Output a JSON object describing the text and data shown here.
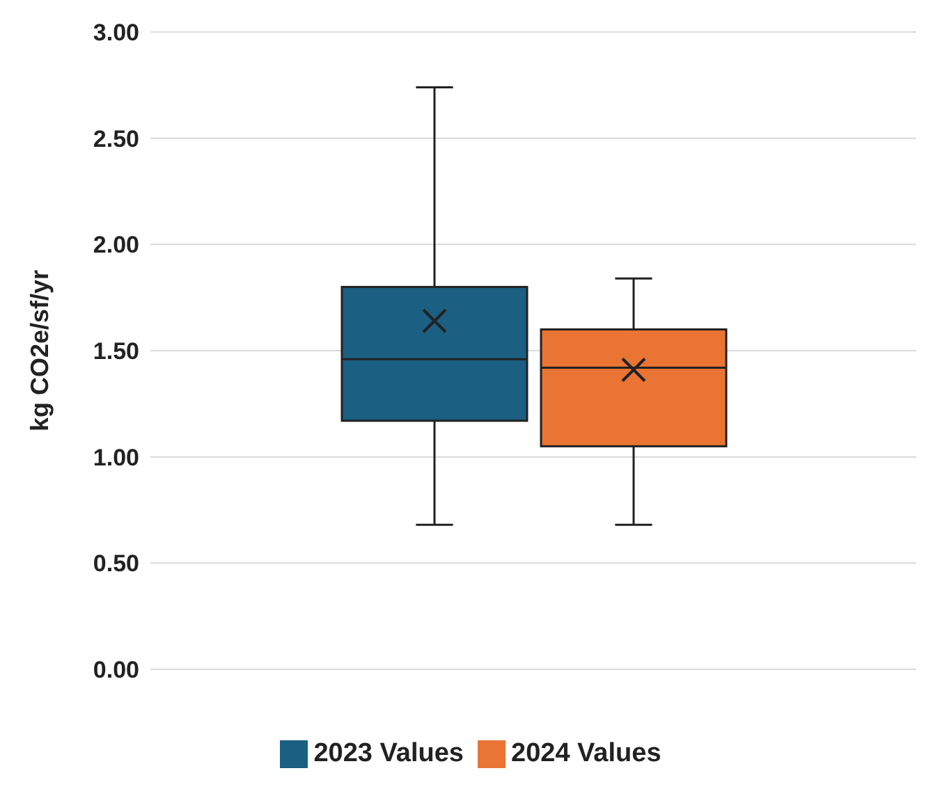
{
  "chart_data": {
    "type": "box",
    "ylabel": "kg CO2e/sf/yr",
    "categories": [
      null
    ],
    "series": [
      {
        "name": "2023 Values",
        "color": "#1b5f82",
        "boxes": [
          {
            "low": 0.68,
            "q1": 1.17,
            "median": 1.46,
            "q3": 1.8,
            "high": 2.74,
            "mean": 1.64
          }
        ]
      },
      {
        "name": "2024 Values",
        "color": "#ea7434",
        "boxes": [
          {
            "low": 0.68,
            "q1": 1.05,
            "median": 1.42,
            "q3": 1.6,
            "high": 1.84,
            "mean": 1.41
          }
        ]
      }
    ],
    "ylim": [
      0,
      3
    ],
    "yticks": [
      {
        "value": 0,
        "label": "0.00"
      },
      {
        "value": 0.5,
        "label": "0.50"
      },
      {
        "value": 1,
        "label": "1.00"
      },
      {
        "value": 1.5,
        "label": "1.50"
      },
      {
        "value": 2,
        "label": "2.00"
      },
      {
        "value": 2.5,
        "label": "2.50"
      },
      {
        "value": 3,
        "label": "3.00"
      }
    ],
    "grid": "y",
    "legend": "bottom",
    "marker": "cross"
  }
}
